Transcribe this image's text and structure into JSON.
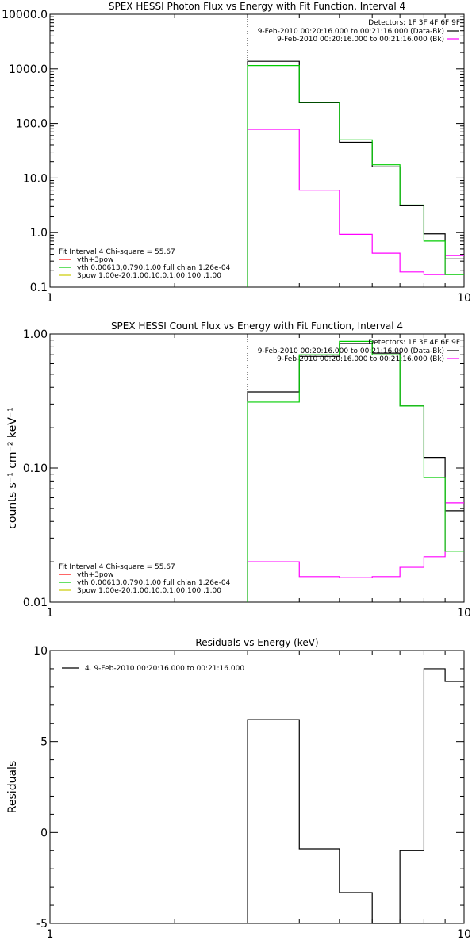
{
  "chart_data": [
    {
      "type": "step",
      "title": "SPEX HESSI Photon Flux vs Energy with Fit Function, Interval 4",
      "xscale": "log",
      "yscale": "log",
      "xlim": [
        1,
        10
      ],
      "ylim": [
        0.1,
        10000
      ],
      "x_ticks": [
        {
          "v": 1,
          "label": "1"
        },
        {
          "v": 10,
          "label": "10"
        }
      ],
      "y_ticks": [
        {
          "v": 0.1,
          "label": "0.1"
        },
        {
          "v": 1,
          "label": "1.0"
        },
        {
          "v": 10,
          "label": "10.0"
        },
        {
          "v": 100,
          "label": "100.0"
        },
        {
          "v": 1000,
          "label": "1000.0"
        },
        {
          "v": 10000,
          "label": "10000.0"
        }
      ],
      "vline_x": 3,
      "header": [
        "Detectors: 1F 3F 4F 6F 9F"
      ],
      "legend_top": [
        {
          "label": "9-Feb-2010 00:20:16.000 to 00:21:16.000 (Data-Bk)",
          "color": "#000000"
        },
        {
          "label": "9-Feb-2010 00:20:16.000 to 00:21:16.000 (Bk)",
          "color": "#ff00ff"
        }
      ],
      "legend_fit": {
        "header": "Fit Interval 4    Chi-square = 55.67",
        "items": [
          {
            "label": "vth+3pow",
            "color": "#ff0000"
          },
          {
            "label": "vth 0.00613,0.790,1.00  full chian 1.26e-04",
            "color": "#00cc00"
          },
          {
            "label": "3pow 1.00e-20,1.00,10.0,1.00,100.,1.00",
            "color": "#cccc00"
          }
        ]
      },
      "bin_edges": [
        3,
        4,
        5,
        6,
        7,
        8,
        9,
        10
      ],
      "series": [
        {
          "name": "Data-Bk",
          "color": "#000000",
          "values": [
            1380,
            240,
            45,
            16,
            3.1,
            0.95,
            0.33
          ]
        },
        {
          "name": "Bk",
          "color": "#ff00ff",
          "values": [
            78,
            6.0,
            0.93,
            0.42,
            0.19,
            0.17,
            0.38
          ]
        },
        {
          "name": "vth",
          "color": "#00cc00",
          "values": [
            1150,
            245,
            50,
            17.5,
            3.2,
            0.7,
            0.17
          ]
        }
      ]
    },
    {
      "type": "step",
      "title": "SPEX HESSI Count Flux vs Energy with Fit Function, Interval 4",
      "ylabel": "counts s⁻¹ cm⁻² keV⁻¹",
      "xscale": "log",
      "yscale": "log",
      "xlim": [
        1,
        10
      ],
      "ylim": [
        0.01,
        1.0
      ],
      "x_ticks": [
        {
          "v": 1,
          "label": "1"
        },
        {
          "v": 10,
          "label": "10"
        }
      ],
      "y_ticks": [
        {
          "v": 0.01,
          "label": "0.01"
        },
        {
          "v": 0.1,
          "label": "0.10"
        },
        {
          "v": 1,
          "label": "1.00"
        }
      ],
      "vline_x": 3,
      "header": [
        "Detectors: 1F 3F 4F 6F 9F"
      ],
      "legend_top": [
        {
          "label": "9-Feb-2010 00:20:16.000 to 00:21:16.000 (Data-Bk)",
          "color": "#000000"
        },
        {
          "label": "9-Feb-2010 00:20:16.000 to 00:21:16.000 (Bk)",
          "color": "#ff00ff"
        }
      ],
      "legend_fit": {
        "header": "Fit Interval 4    Chi-square = 55.67",
        "items": [
          {
            "label": "vth+3pow",
            "color": "#ff0000"
          },
          {
            "label": "vth 0.00613,0.790,1.00  full chian 1.26e-04",
            "color": "#00cc00"
          },
          {
            "label": "3pow 1.00e-20,1.00,10.0,1.00,100.,1.00",
            "color": "#cccc00"
          }
        ]
      },
      "bin_edges": [
        3,
        4,
        5,
        6,
        7,
        8,
        9,
        10
      ],
      "series": [
        {
          "name": "Data-Bk",
          "color": "#000000",
          "values": [
            0.37,
            0.68,
            0.85,
            0.72,
            0.29,
            0.12,
            0.048
          ]
        },
        {
          "name": "Bk",
          "color": "#ff00ff",
          "values": [
            0.02,
            0.0155,
            0.0152,
            0.0155,
            0.0182,
            0.0218,
            0.055
          ]
        },
        {
          "name": "vth",
          "color": "#00cc00",
          "values": [
            0.31,
            0.7,
            0.88,
            0.7,
            0.29,
            0.085,
            0.024
          ]
        }
      ]
    },
    {
      "type": "step",
      "title": "Residuals vs Energy (keV)",
      "ylabel": "Residuals",
      "xscale": "log",
      "yscale": "linear",
      "xlim": [
        1,
        10
      ],
      "ylim": [
        -5,
        10
      ],
      "x_ticks": [
        {
          "v": 1,
          "label": "1"
        },
        {
          "v": 10,
          "label": "10"
        }
      ],
      "y_ticks": [
        {
          "v": -5,
          "label": "-5"
        },
        {
          "v": 0,
          "label": "0"
        },
        {
          "v": 5,
          "label": "5"
        },
        {
          "v": 10,
          "label": "10"
        }
      ],
      "legend_top": [
        {
          "label": "4.  9-Feb-2010 00:20:16.000 to 00:21:16.000",
          "color": "#000000"
        }
      ],
      "bin_edges": [
        3,
        4,
        5,
        6,
        7,
        8,
        9,
        10
      ],
      "series": [
        {
          "name": "Residuals",
          "color": "#000000",
          "values": [
            6.2,
            -0.9,
            -3.3,
            -5.0,
            -1.0,
            9.0,
            8.3
          ]
        }
      ]
    }
  ]
}
